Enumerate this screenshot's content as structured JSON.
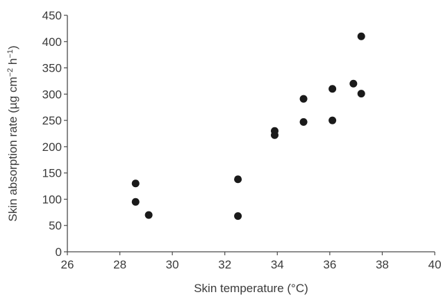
{
  "chart_data": {
    "type": "scatter",
    "title": "",
    "xlabel": "Skin temperature (°C)",
    "ylabel_parts": [
      "Skin absorption rate (µg cm",
      "−2",
      " h",
      "−1",
      ")"
    ],
    "xlim": [
      26,
      40
    ],
    "ylim": [
      0,
      450
    ],
    "xticks": [
      26,
      28,
      30,
      32,
      34,
      36,
      38,
      40
    ],
    "yticks": [
      0,
      50,
      100,
      150,
      200,
      250,
      300,
      350,
      400,
      450
    ],
    "grid": false,
    "legend": "none",
    "marker_color": "#1a1a1a",
    "series": [
      {
        "points": [
          {
            "x": 28.6,
            "y": 130
          },
          {
            "x": 28.6,
            "y": 95
          },
          {
            "x": 29.1,
            "y": 70
          },
          {
            "x": 32.5,
            "y": 138
          },
          {
            "x": 32.5,
            "y": 68
          },
          {
            "x": 33.9,
            "y": 230
          },
          {
            "x": 33.9,
            "y": 222
          },
          {
            "x": 35.0,
            "y": 291
          },
          {
            "x": 35.0,
            "y": 247
          },
          {
            "x": 36.1,
            "y": 310
          },
          {
            "x": 36.1,
            "y": 250
          },
          {
            "x": 36.9,
            "y": 320
          },
          {
            "x": 37.2,
            "y": 410
          },
          {
            "x": 37.2,
            "y": 301
          }
        ]
      }
    ]
  }
}
